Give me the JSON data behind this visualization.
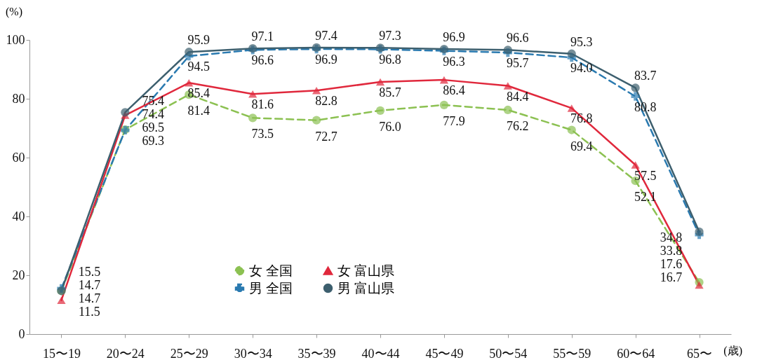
{
  "chart_data": {
    "type": "line",
    "ylabel": "(%)",
    "xlabel": "(歳)",
    "categories": [
      "15〜19",
      "20〜24",
      "25〜29",
      "30〜34",
      "35〜39",
      "40〜44",
      "45〜49",
      "50〜54",
      "55〜59",
      "60〜64",
      "65〜"
    ],
    "ylim": [
      0,
      100
    ],
    "yticks": [
      0,
      20,
      40,
      60,
      80,
      100
    ],
    "legend": "bottom",
    "series": [
      {
        "name": "女 全国",
        "color": "#8cc152",
        "marker": "circle",
        "line_style": "dashed",
        "values": [
          14.7,
          69.5,
          81.4,
          73.5,
          72.7,
          76.0,
          77.9,
          76.2,
          69.4,
          52.1,
          17.6
        ],
        "value_labels": [
          "14.7",
          "69.5",
          "81.4",
          "73.5",
          "72.7",
          "76.0",
          "77.9",
          "76.2",
          "69.4",
          "52.1",
          "17.6"
        ]
      },
      {
        "name": "男 全国",
        "color": "#2a7ab0",
        "marker": "cross",
        "line_style": "dashed",
        "values": [
          15.5,
          69.3,
          94.5,
          96.6,
          96.9,
          96.8,
          96.3,
          95.7,
          94.0,
          80.8,
          33.8
        ],
        "value_labels": [
          "15.5",
          "69.3",
          "94.5",
          "96.6",
          "96.9",
          "96.8",
          "96.3",
          "95.7",
          "94.0",
          "80.8",
          "33.8"
        ]
      },
      {
        "name": "女 富山県",
        "color": "#e0283c",
        "marker": "triangle",
        "line_style": "solid",
        "values": [
          11.5,
          74.4,
          85.4,
          81.6,
          82.8,
          85.7,
          86.4,
          84.4,
          76.8,
          57.5,
          16.7
        ],
        "value_labels": [
          "11.5",
          "74.4",
          "85.4",
          "81.6",
          "82.8",
          "85.7",
          "86.4",
          "84.4",
          "76.8",
          "57.5",
          "16.7"
        ]
      },
      {
        "name": "男 富山県",
        "color": "#3d5f6e",
        "marker": "circle",
        "line_style": "solid",
        "values": [
          14.7,
          75.4,
          95.9,
          97.1,
          97.4,
          97.3,
          96.9,
          96.6,
          95.3,
          83.7,
          34.8
        ],
        "value_labels": [
          "14.7",
          "75.4",
          "95.9",
          "97.1",
          "97.4",
          "97.3",
          "96.9",
          "96.6",
          "95.3",
          "83.7",
          "34.8"
        ]
      }
    ]
  }
}
